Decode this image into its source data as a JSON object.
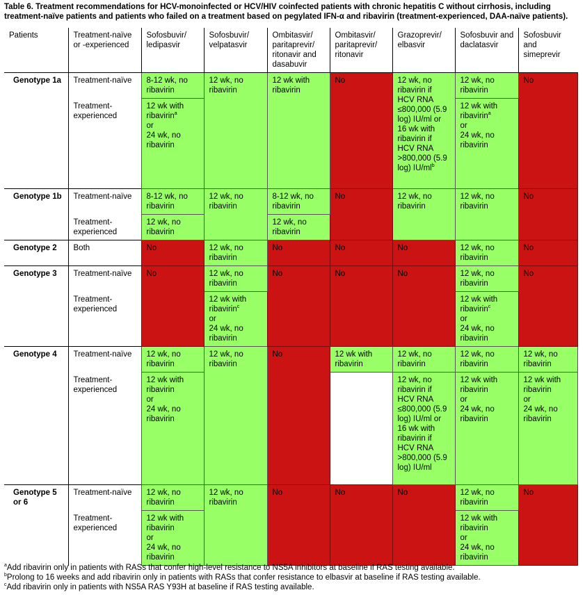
{
  "caption": "Table 6. Treatment recommendations for HCV-monoinfected or HCV/HIV coinfected patients with chronic hepatitis C without cirrhosis, including treatment-naïve patients and patients who failed on a treatment based on pegylated IFN-α and ribavirin (treatment-experienced, DAA-naïve patients).",
  "headers": [
    "Patients",
    "Treatment-naïve or -experienced",
    "Sofosbuvir/ ledipasvir",
    "Sofosbuvir/ velpatasvir",
    "Ombitasvir/ paritaprevir/ ritonavir and dasabuvir",
    "Ombitasvir/ paritaprevir/ ritonavir",
    "Grazoprevir/ elbasvir",
    "Sofosbuvir and daclatasvir",
    "Sofosbuvir and simeprevir"
  ],
  "labels": {
    "g1a": "Genotype 1a",
    "g1b": "Genotype 1b",
    "g2": "Genotype 2",
    "g3": "Genotype 3",
    "g4": "Genotype 4",
    "g56": "Genotype 5 or 6",
    "naive": "Treatment-naïve",
    "exp": "Treatment-experienced",
    "both": "Both"
  },
  "vals": {
    "no": "No",
    "w812nr": "8-12 wk, no ribavirin",
    "w12nr": "12 wk, no ribavirin",
    "w12r": "12 wk with ribavirin",
    "or": "or",
    "w24nr": "24 wk, no ribavirin",
    "gz_1a": "12 wk, no ribavirin if HCV RNA ≤800,000 (5.9 log) IU/ml or 16 wk with ribavirin if HCV RNA >800,000 (5.9 log) IU/ml",
    "gz_g4exp": "12 wk, no ribavirin if HCV RNA ≤800,000 (5.9 log) IU/ml or 16 wk with ribavirin if HCV RNA >800,000 (5.9 log) IU/ml"
  },
  "footnotes": {
    "a": "Add ribavirin only in patients with RASs that confer high-level resistance to NS5A inhibitors at baseline if RAS testing available.",
    "b": "Prolong to 16 weeks and add ribavirin only in patients with RASs that confer resistance to elbasvir at baseline if RAS testing available.",
    "c": "Add ribavirin only in patients with NS5A RAS Y93H at baseline if RAS testing available."
  },
  "sup": {
    "a": "a",
    "b": "b",
    "c": "c"
  },
  "colors": {
    "green": "#99ff66",
    "red": "#cc1313"
  }
}
